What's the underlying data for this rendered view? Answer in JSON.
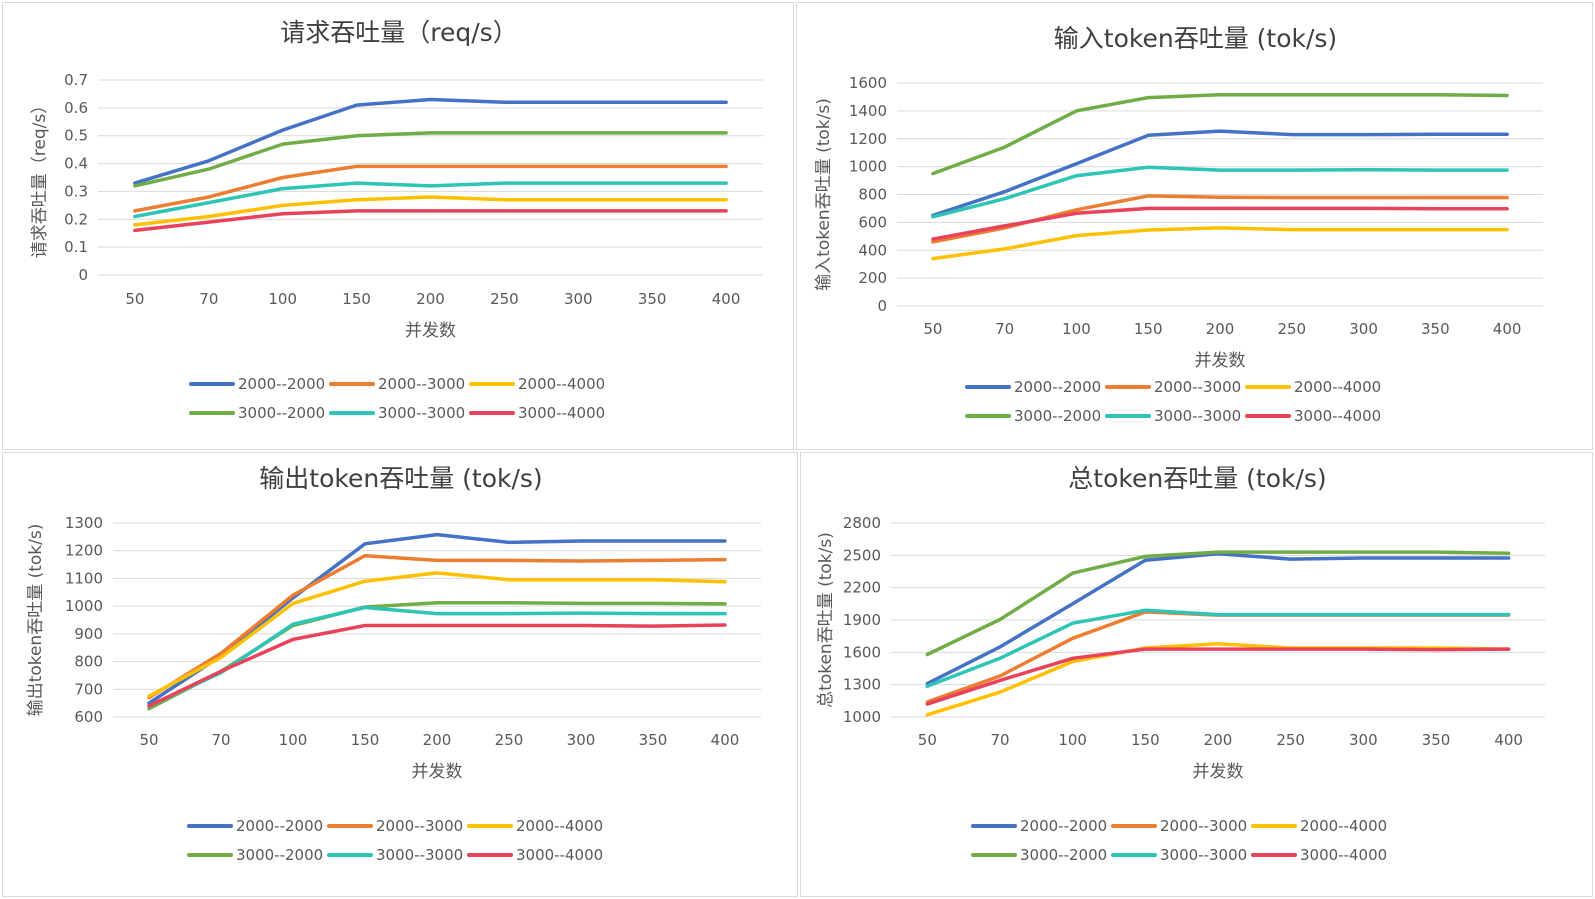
{
  "chart_data": [
    {
      "type": "line",
      "title": "请求吞吐量（req/s）",
      "xlabel": "并发数",
      "ylabel": "请求吞吐量（req/s）",
      "ylim": [
        0,
        0.7
      ],
      "yticks": [
        "0",
        "0.1",
        "0.2",
        "0.3",
        "0.4",
        "0.5",
        "0.6",
        "0.7"
      ],
      "categories": [
        "50",
        "70",
        "100",
        "150",
        "200",
        "250",
        "300",
        "350",
        "400"
      ],
      "grid": true,
      "legend_position": "bottom",
      "series": [
        {
          "name": "2000--2000",
          "color": "#4472C4",
          "values": [
            0.33,
            0.41,
            0.52,
            0.61,
            0.63,
            0.62,
            0.62,
            0.62,
            0.62
          ]
        },
        {
          "name": "2000--3000",
          "color": "#ED7D31",
          "values": [
            0.23,
            0.28,
            0.35,
            0.39,
            0.39,
            0.39,
            0.39,
            0.39,
            0.39
          ]
        },
        {
          "name": "2000--4000",
          "color": "#FFC000",
          "values": [
            0.18,
            0.21,
            0.25,
            0.27,
            0.28,
            0.27,
            0.27,
            0.27,
            0.27
          ]
        },
        {
          "name": "3000--2000",
          "color": "#70AD47",
          "values": [
            0.32,
            0.38,
            0.47,
            0.5,
            0.51,
            0.51,
            0.51,
            0.51,
            0.51
          ]
        },
        {
          "name": "3000--3000",
          "color": "#2EC4B6",
          "values": [
            0.21,
            0.26,
            0.31,
            0.33,
            0.32,
            0.33,
            0.33,
            0.33,
            0.33
          ]
        },
        {
          "name": "3000--4000",
          "color": "#E8435A",
          "values": [
            0.16,
            0.19,
            0.22,
            0.23,
            0.23,
            0.23,
            0.23,
            0.23,
            0.23
          ]
        }
      ]
    },
    {
      "type": "line",
      "title": "输入token吞吐量 (tok/s)",
      "xlabel": "并发数",
      "ylabel": "输入token吞吐量 (tok/s)",
      "ylim": [
        0,
        1600
      ],
      "yticks": [
        "0",
        "200",
        "400",
        "600",
        "800",
        "1000",
        "1200",
        "1400",
        "1600"
      ],
      "categories": [
        "50",
        "70",
        "100",
        "150",
        "200",
        "250",
        "300",
        "350",
        "400"
      ],
      "grid": true,
      "legend_position": "bottom",
      "series": [
        {
          "name": "2000--2000",
          "color": "#4472C4",
          "values": [
            650,
            820,
            1020,
            1225,
            1255,
            1230,
            1230,
            1232,
            1232
          ]
        },
        {
          "name": "2000--3000",
          "color": "#ED7D31",
          "values": [
            460,
            560,
            690,
            790,
            780,
            778,
            778,
            778,
            778
          ]
        },
        {
          "name": "2000--4000",
          "color": "#FFC000",
          "values": [
            340,
            410,
            505,
            545,
            560,
            548,
            548,
            548,
            548
          ]
        },
        {
          "name": "3000--2000",
          "color": "#70AD47",
          "values": [
            950,
            1140,
            1400,
            1495,
            1515,
            1515,
            1515,
            1515,
            1510
          ]
        },
        {
          "name": "3000--3000",
          "color": "#2EC4B6",
          "values": [
            640,
            770,
            935,
            995,
            975,
            975,
            978,
            975,
            975
          ]
        },
        {
          "name": "3000--4000",
          "color": "#E8435A",
          "values": [
            480,
            575,
            665,
            700,
            700,
            700,
            700,
            698,
            698
          ]
        }
      ]
    },
    {
      "type": "line",
      "title": "输出token吞吐量 (tok/s)",
      "xlabel": "并发数",
      "ylabel": "输出token吞吐量 (tok/s)",
      "ylim": [
        600,
        1300
      ],
      "yticks": [
        "600",
        "700",
        "800",
        "900",
        "1000",
        "1100",
        "1200",
        "1300"
      ],
      "categories": [
        "50",
        "70",
        "100",
        "150",
        "200",
        "250",
        "300",
        "350",
        "400"
      ],
      "grid": true,
      "legend_position": "bottom",
      "series": [
        {
          "name": "2000--2000",
          "color": "#4472C4",
          "values": [
            650,
            820,
            1030,
            1225,
            1258,
            1230,
            1235,
            1235,
            1235
          ]
        },
        {
          "name": "2000--3000",
          "color": "#ED7D31",
          "values": [
            670,
            830,
            1040,
            1182,
            1165,
            1165,
            1163,
            1165,
            1168
          ]
        },
        {
          "name": "2000--4000",
          "color": "#FFC000",
          "values": [
            675,
            815,
            1010,
            1090,
            1120,
            1095,
            1095,
            1095,
            1088
          ]
        },
        {
          "name": "3000--2000",
          "color": "#70AD47",
          "values": [
            630,
            765,
            930,
            997,
            1012,
            1012,
            1010,
            1010,
            1008
          ]
        },
        {
          "name": "3000--3000",
          "color": "#2EC4B6",
          "values": [
            640,
            760,
            935,
            995,
            973,
            973,
            975,
            973,
            973
          ]
        },
        {
          "name": "3000--4000",
          "color": "#E8435A",
          "values": [
            640,
            765,
            880,
            930,
            930,
            930,
            930,
            928,
            932
          ]
        }
      ]
    },
    {
      "type": "line",
      "title": "总token吞吐量 (tok/s)",
      "xlabel": "并发数",
      "ylabel": "总token吞吐量 (tok/s)",
      "ylim": [
        1000,
        2800
      ],
      "yticks": [
        "1000",
        "1300",
        "1600",
        "1900",
        "2200",
        "2500",
        "2800"
      ],
      "categories": [
        "50",
        "70",
        "100",
        "150",
        "200",
        "250",
        "300",
        "350",
        "400"
      ],
      "grid": true,
      "legend_position": "bottom",
      "series": [
        {
          "name": "2000--2000",
          "color": "#4472C4",
          "values": [
            1310,
            1650,
            2050,
            2455,
            2515,
            2465,
            2475,
            2475,
            2475
          ]
        },
        {
          "name": "2000--3000",
          "color": "#ED7D31",
          "values": [
            1140,
            1380,
            1730,
            1975,
            1945,
            1945,
            1945,
            1945,
            1945
          ]
        },
        {
          "name": "2000--4000",
          "color": "#FFC000",
          "values": [
            1020,
            1230,
            1515,
            1640,
            1680,
            1640,
            1640,
            1640,
            1630
          ]
        },
        {
          "name": "3000--2000",
          "color": "#70AD47",
          "values": [
            1580,
            1905,
            2335,
            2490,
            2530,
            2530,
            2530,
            2530,
            2520
          ]
        },
        {
          "name": "3000--3000",
          "color": "#2EC4B6",
          "values": [
            1285,
            1545,
            1870,
            1990,
            1950,
            1950,
            1950,
            1950,
            1950
          ]
        },
        {
          "name": "3000--4000",
          "color": "#E8435A",
          "values": [
            1120,
            1340,
            1545,
            1630,
            1630,
            1630,
            1630,
            1625,
            1630
          ]
        }
      ]
    }
  ]
}
